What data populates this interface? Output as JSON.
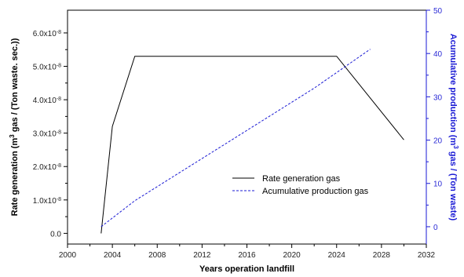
{
  "chart_data": {
    "type": "line",
    "xlabel": "Years operation landfill",
    "ylabel_left_parts": [
      "Rate generation (m",
      "3",
      " gas / (Ton waste. sec.))"
    ],
    "ylabel_right_parts": [
      "Acumulative production (m",
      "3",
      " gas / (Ton waste)"
    ],
    "x_ticks": [
      "2000",
      "2004",
      "2008",
      "2012",
      "2016",
      "2020",
      "2024",
      "2028",
      "2032"
    ],
    "x_tick_values": [
      2000,
      2004,
      2008,
      2012,
      2016,
      2020,
      2024,
      2028,
      2032
    ],
    "xlim": [
      2000,
      2032
    ],
    "y_left_ticks": [
      {
        "mant": "0.0",
        "exp": ""
      },
      {
        "mant": "1.0x10",
        "exp": "-8"
      },
      {
        "mant": "2.0x10",
        "exp": "-8"
      },
      {
        "mant": "3.0x10",
        "exp": "-8"
      },
      {
        "mant": "4.0x10",
        "exp": "-8"
      },
      {
        "mant": "5.0x10",
        "exp": "-8"
      },
      {
        "mant": "6.0x10",
        "exp": "-8"
      }
    ],
    "y_left_tick_values": [
      0,
      1e-08,
      2e-08,
      3e-08,
      4e-08,
      5e-08,
      6e-08
    ],
    "ylim_left": [
      -3.2e-09,
      6.68e-08
    ],
    "y_right_ticks": [
      "0",
      "10",
      "20",
      "30",
      "40",
      "50"
    ],
    "y_right_tick_values": [
      0,
      10,
      20,
      30,
      40,
      50
    ],
    "ylim_right": [
      -4,
      50
    ],
    "legend_position": "center-right",
    "series": [
      {
        "name": "Rate generation gas",
        "axis": "left",
        "color": "#000000",
        "style": "solid",
        "x": [
          2003,
          2004,
          2006,
          2024,
          2030
        ],
        "y": [
          0.0,
          3.2e-08,
          5.3e-08,
          5.3e-08,
          2.8e-08
        ]
      },
      {
        "name": "Acumulative production gas",
        "axis": "right",
        "color": "#1a1ad4",
        "style": "dashed",
        "x": [
          2003,
          2006,
          2010,
          2014,
          2018,
          2022,
          2027
        ],
        "y": [
          0,
          6,
          12.5,
          19,
          25.5,
          32,
          41
        ]
      }
    ]
  }
}
